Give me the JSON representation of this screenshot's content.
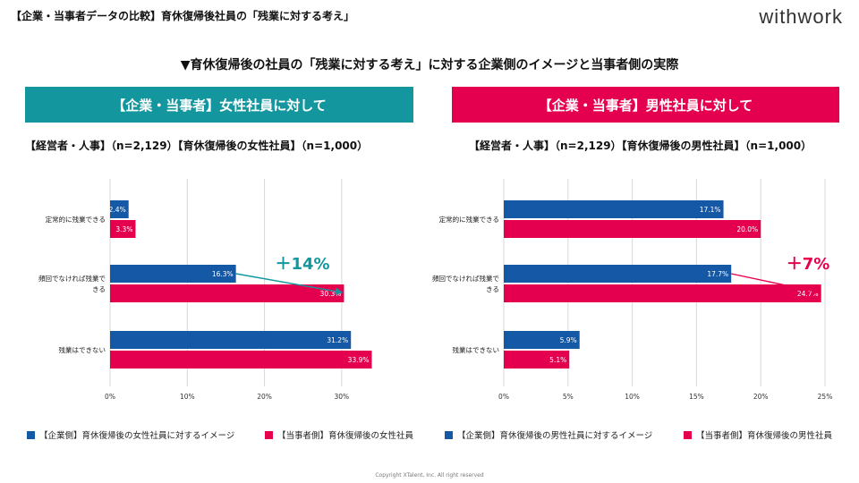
{
  "header": {
    "title": "【企業・当事者データの比較】育休復帰後社員の「残業に対する考え」",
    "logo": "withwork"
  },
  "main_title": "▼育休復帰後の社員の「残業に対する考え」に対する企業側のイメージと当事者側の実際",
  "colors": {
    "company": "#1558a6",
    "employee": "#e5004f",
    "teal": "#14969f",
    "pink": "#e5004f"
  },
  "panels": [
    {
      "banner": "【企業・当事者】女性社員に対して",
      "sample": "【経営者・人事】（n=2,129）【育休復帰後の女性社員】（n=1,000）",
      "annotation": "＋14%",
      "annotation_color": "#14969f",
      "legend": [
        "【企業側】育休復帰後の女性社員に対するイメージ",
        "【当事者側】育休復帰後の女性社員"
      ]
    },
    {
      "banner": "【企業・当事者】男性社員に対して",
      "sample": "【経営者・人事】（n=2,129）【育休復帰後の男性社員】（n=1,000）",
      "annotation": "＋7%",
      "annotation_color": "#e5004f",
      "legend": [
        "【企業側】育休復帰後の男性社員に対するイメージ",
        "【当事者側】育休復帰後の男性社員"
      ]
    }
  ],
  "chart_data": [
    {
      "type": "bar",
      "orientation": "horizontal",
      "categories": [
        [
          "定常的に残業できる"
        ],
        [
          "頻回でなければ残業で",
          "きる"
        ],
        [
          "残業はできない"
        ]
      ],
      "series": [
        {
          "name": "【企業側】育休復帰後の女性社員に対するイメージ",
          "values": [
            2.4,
            16.3,
            31.2
          ],
          "labels": [
            "2.4%",
            "16.3%",
            "31.2%"
          ]
        },
        {
          "name": "【当事者側】育休復帰後の女性社員",
          "values": [
            3.3,
            30.3,
            33.9
          ],
          "labels": [
            "3.3%",
            "30.3%",
            "33.9%"
          ]
        }
      ],
      "xlim": [
        0,
        35
      ],
      "ticks": [
        0,
        10,
        20,
        30
      ],
      "tick_labels": [
        "0%",
        "10%",
        "20%",
        "30%"
      ],
      "grid": true,
      "arrow": {
        "category": 1,
        "from_series": 0,
        "to_series": 1
      }
    },
    {
      "type": "bar",
      "orientation": "horizontal",
      "categories": [
        [
          "定常的に残業できる"
        ],
        [
          "頻回でなければ残業で",
          "きる"
        ],
        [
          "残業はできない"
        ]
      ],
      "series": [
        {
          "name": "【企業側】育休復帰後の男性社員に対するイメージ",
          "values": [
            17.1,
            17.7,
            5.9
          ],
          "labels": [
            "17.1%",
            "17.7%",
            "5.9%"
          ]
        },
        {
          "name": "【当事者側】育休復帰後の男性社員",
          "values": [
            20.0,
            24.7,
            5.1
          ],
          "labels": [
            "20.0%",
            "24.7%",
            "5.1%"
          ]
        }
      ],
      "xlim": [
        0,
        25
      ],
      "ticks": [
        0,
        5,
        10,
        15,
        20,
        25
      ],
      "tick_labels": [
        "0%",
        "5%",
        "10%",
        "15%",
        "20%",
        "25%"
      ],
      "grid": true,
      "arrow": {
        "category": 1,
        "from_series": 0,
        "to_series": 1
      }
    }
  ],
  "copyright": "Copyright XTalent, Inc. All right reserved"
}
